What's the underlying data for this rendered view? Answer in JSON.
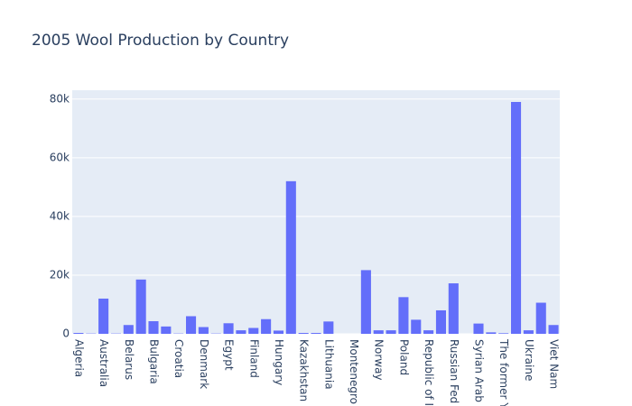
{
  "chart_data": {
    "type": "bar",
    "title": "2005 Wool Production by Country",
    "categories": [
      "Algeria",
      null,
      "Australia",
      null,
      "Belarus",
      null,
      "Bulgaria",
      null,
      "Croatia",
      null,
      "Denmark",
      null,
      "Egypt",
      null,
      "Finland",
      null,
      "Hungary",
      null,
      "Kazakhstan",
      null,
      "Lithuania",
      null,
      "Montenegro",
      null,
      "Norway",
      null,
      "Poland",
      null,
      "Republic of I",
      null,
      "Russian Fed",
      null,
      "Syrian Arab",
      null,
      "The former Y",
      null,
      "Ukraine",
      null,
      "Viet Nam"
    ],
    "values": [
      300,
      100,
      12000,
      100,
      3000,
      18500,
      4300,
      2500,
      100,
      6000,
      2300,
      100,
      3600,
      1200,
      2000,
      5000,
      1100,
      52000,
      300,
      300,
      4200,
      0,
      0,
      21700,
      1200,
      1200,
      12500,
      4800,
      1200,
      8000,
      17200,
      0,
      3500,
      500,
      200,
      79000,
      1200,
      10600,
      3000
    ],
    "color": "#636efa",
    "ylim": [
      0,
      83000
    ],
    "yticks": [
      0,
      {
        "value": 20000,
        "label": "20k"
      },
      {
        "value": 40000,
        "label": "40k"
      },
      {
        "value": 60000,
        "label": "60k"
      },
      {
        "value": 80000,
        "label": "80k"
      }
    ],
    "grid": true
  }
}
